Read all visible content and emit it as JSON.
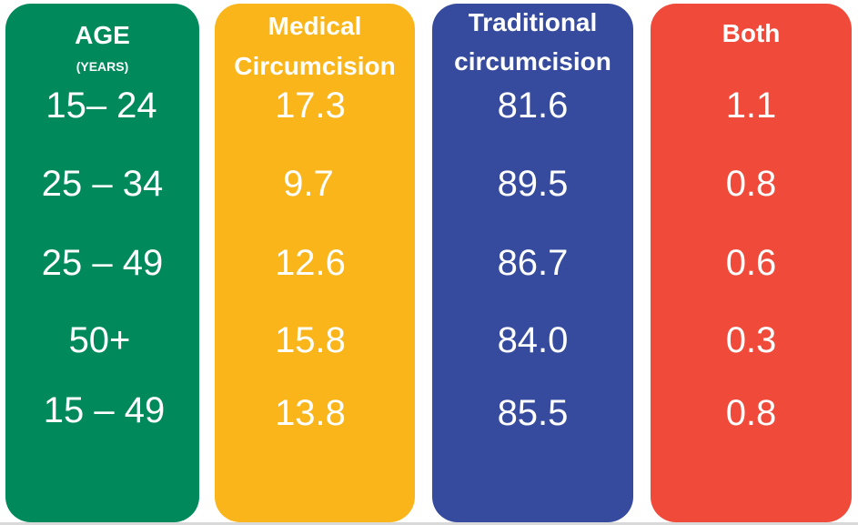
{
  "chart_data": {
    "type": "table",
    "columns": [
      {
        "key": "age",
        "header": "AGE",
        "subheader": "(YEARS)",
        "color": "#008a5c"
      },
      {
        "key": "medical",
        "header": "Medical\nCircumcision",
        "color": "#f9b51a"
      },
      {
        "key": "traditional",
        "header": "Traditional\ncircumcision",
        "color": "#364b9e"
      },
      {
        "key": "both",
        "header": "Both",
        "color": "#ef4a3a"
      }
    ],
    "rows": [
      {
        "age": "15– 24",
        "medical": 17.3,
        "traditional": 81.6,
        "both": 1.1
      },
      {
        "age": "25 – 34",
        "medical": 9.7,
        "traditional": 89.5,
        "both": 0.8
      },
      {
        "age": "25 – 49",
        "medical": 12.6,
        "traditional": 86.7,
        "both": 0.6
      },
      {
        "age": "50+",
        "medical": 15.8,
        "traditional": 84.0,
        "both": 0.3
      },
      {
        "age": "15 – 49",
        "medical": 13.8,
        "traditional": 85.5,
        "both": 0.8
      }
    ]
  },
  "display": {
    "age": [
      "15– 24",
      "25 – 34",
      "25 – 49",
      "50+",
      "15 – 49"
    ],
    "medical": [
      "17.3",
      "9.7",
      "12.6",
      "15.8",
      "13.8"
    ],
    "traditional": [
      "81.6",
      "89.5",
      "86.7",
      "84.0",
      "85.5"
    ],
    "both": [
      "1.1",
      "0.8",
      "0.6",
      "0.3",
      "0.8"
    ]
  }
}
